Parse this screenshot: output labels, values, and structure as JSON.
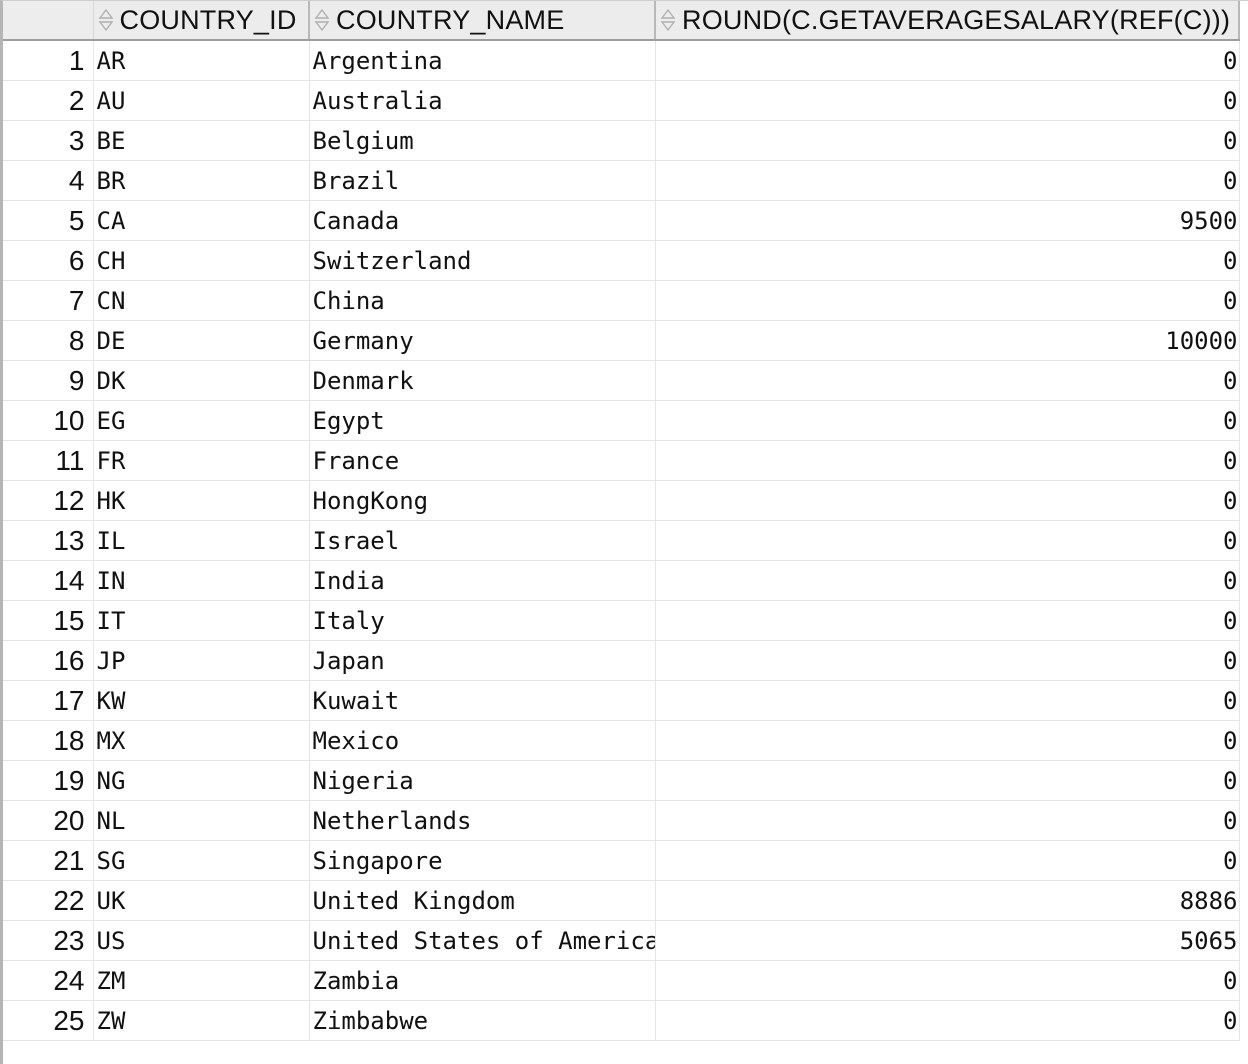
{
  "grid": {
    "columns": [
      {
        "label": "COUNTRY_ID"
      },
      {
        "label": "COUNTRY_NAME"
      },
      {
        "label": "ROUND(C.GETAVERAGESALARY(REF(C)))"
      }
    ],
    "rows": [
      {
        "n": "1",
        "id": "AR",
        "name": "Argentina",
        "avg": "0"
      },
      {
        "n": "2",
        "id": "AU",
        "name": "Australia",
        "avg": "0"
      },
      {
        "n": "3",
        "id": "BE",
        "name": "Belgium",
        "avg": "0"
      },
      {
        "n": "4",
        "id": "BR",
        "name": "Brazil",
        "avg": "0"
      },
      {
        "n": "5",
        "id": "CA",
        "name": "Canada",
        "avg": "9500"
      },
      {
        "n": "6",
        "id": "CH",
        "name": "Switzerland",
        "avg": "0"
      },
      {
        "n": "7",
        "id": "CN",
        "name": "China",
        "avg": "0"
      },
      {
        "n": "8",
        "id": "DE",
        "name": "Germany",
        "avg": "10000"
      },
      {
        "n": "9",
        "id": "DK",
        "name": "Denmark",
        "avg": "0"
      },
      {
        "n": "10",
        "id": "EG",
        "name": "Egypt",
        "avg": "0"
      },
      {
        "n": "11",
        "id": "FR",
        "name": "France",
        "avg": "0"
      },
      {
        "n": "12",
        "id": "HK",
        "name": "HongKong",
        "avg": "0"
      },
      {
        "n": "13",
        "id": "IL",
        "name": "Israel",
        "avg": "0"
      },
      {
        "n": "14",
        "id": "IN",
        "name": "India",
        "avg": "0"
      },
      {
        "n": "15",
        "id": "IT",
        "name": "Italy",
        "avg": "0"
      },
      {
        "n": "16",
        "id": "JP",
        "name": "Japan",
        "avg": "0"
      },
      {
        "n": "17",
        "id": "KW",
        "name": "Kuwait",
        "avg": "0"
      },
      {
        "n": "18",
        "id": "MX",
        "name": "Mexico",
        "avg": "0"
      },
      {
        "n": "19",
        "id": "NG",
        "name": "Nigeria",
        "avg": "0"
      },
      {
        "n": "20",
        "id": "NL",
        "name": "Netherlands",
        "avg": "0"
      },
      {
        "n": "21",
        "id": "SG",
        "name": "Singapore",
        "avg": "0"
      },
      {
        "n": "22",
        "id": "UK",
        "name": "United Kingdom",
        "avg": "8886"
      },
      {
        "n": "23",
        "id": "US",
        "name": "United States of America",
        "avg": "5065"
      },
      {
        "n": "24",
        "id": "ZM",
        "name": "Zambia",
        "avg": "0"
      },
      {
        "n": "25",
        "id": "ZW",
        "name": "Zimbabwe",
        "avg": "0"
      }
    ]
  },
  "icons": {
    "sort": "sort-updown-icon"
  },
  "colors": {
    "header_bg": "#ececec",
    "grid_line": "#e4e4e4",
    "text": "#111111"
  }
}
